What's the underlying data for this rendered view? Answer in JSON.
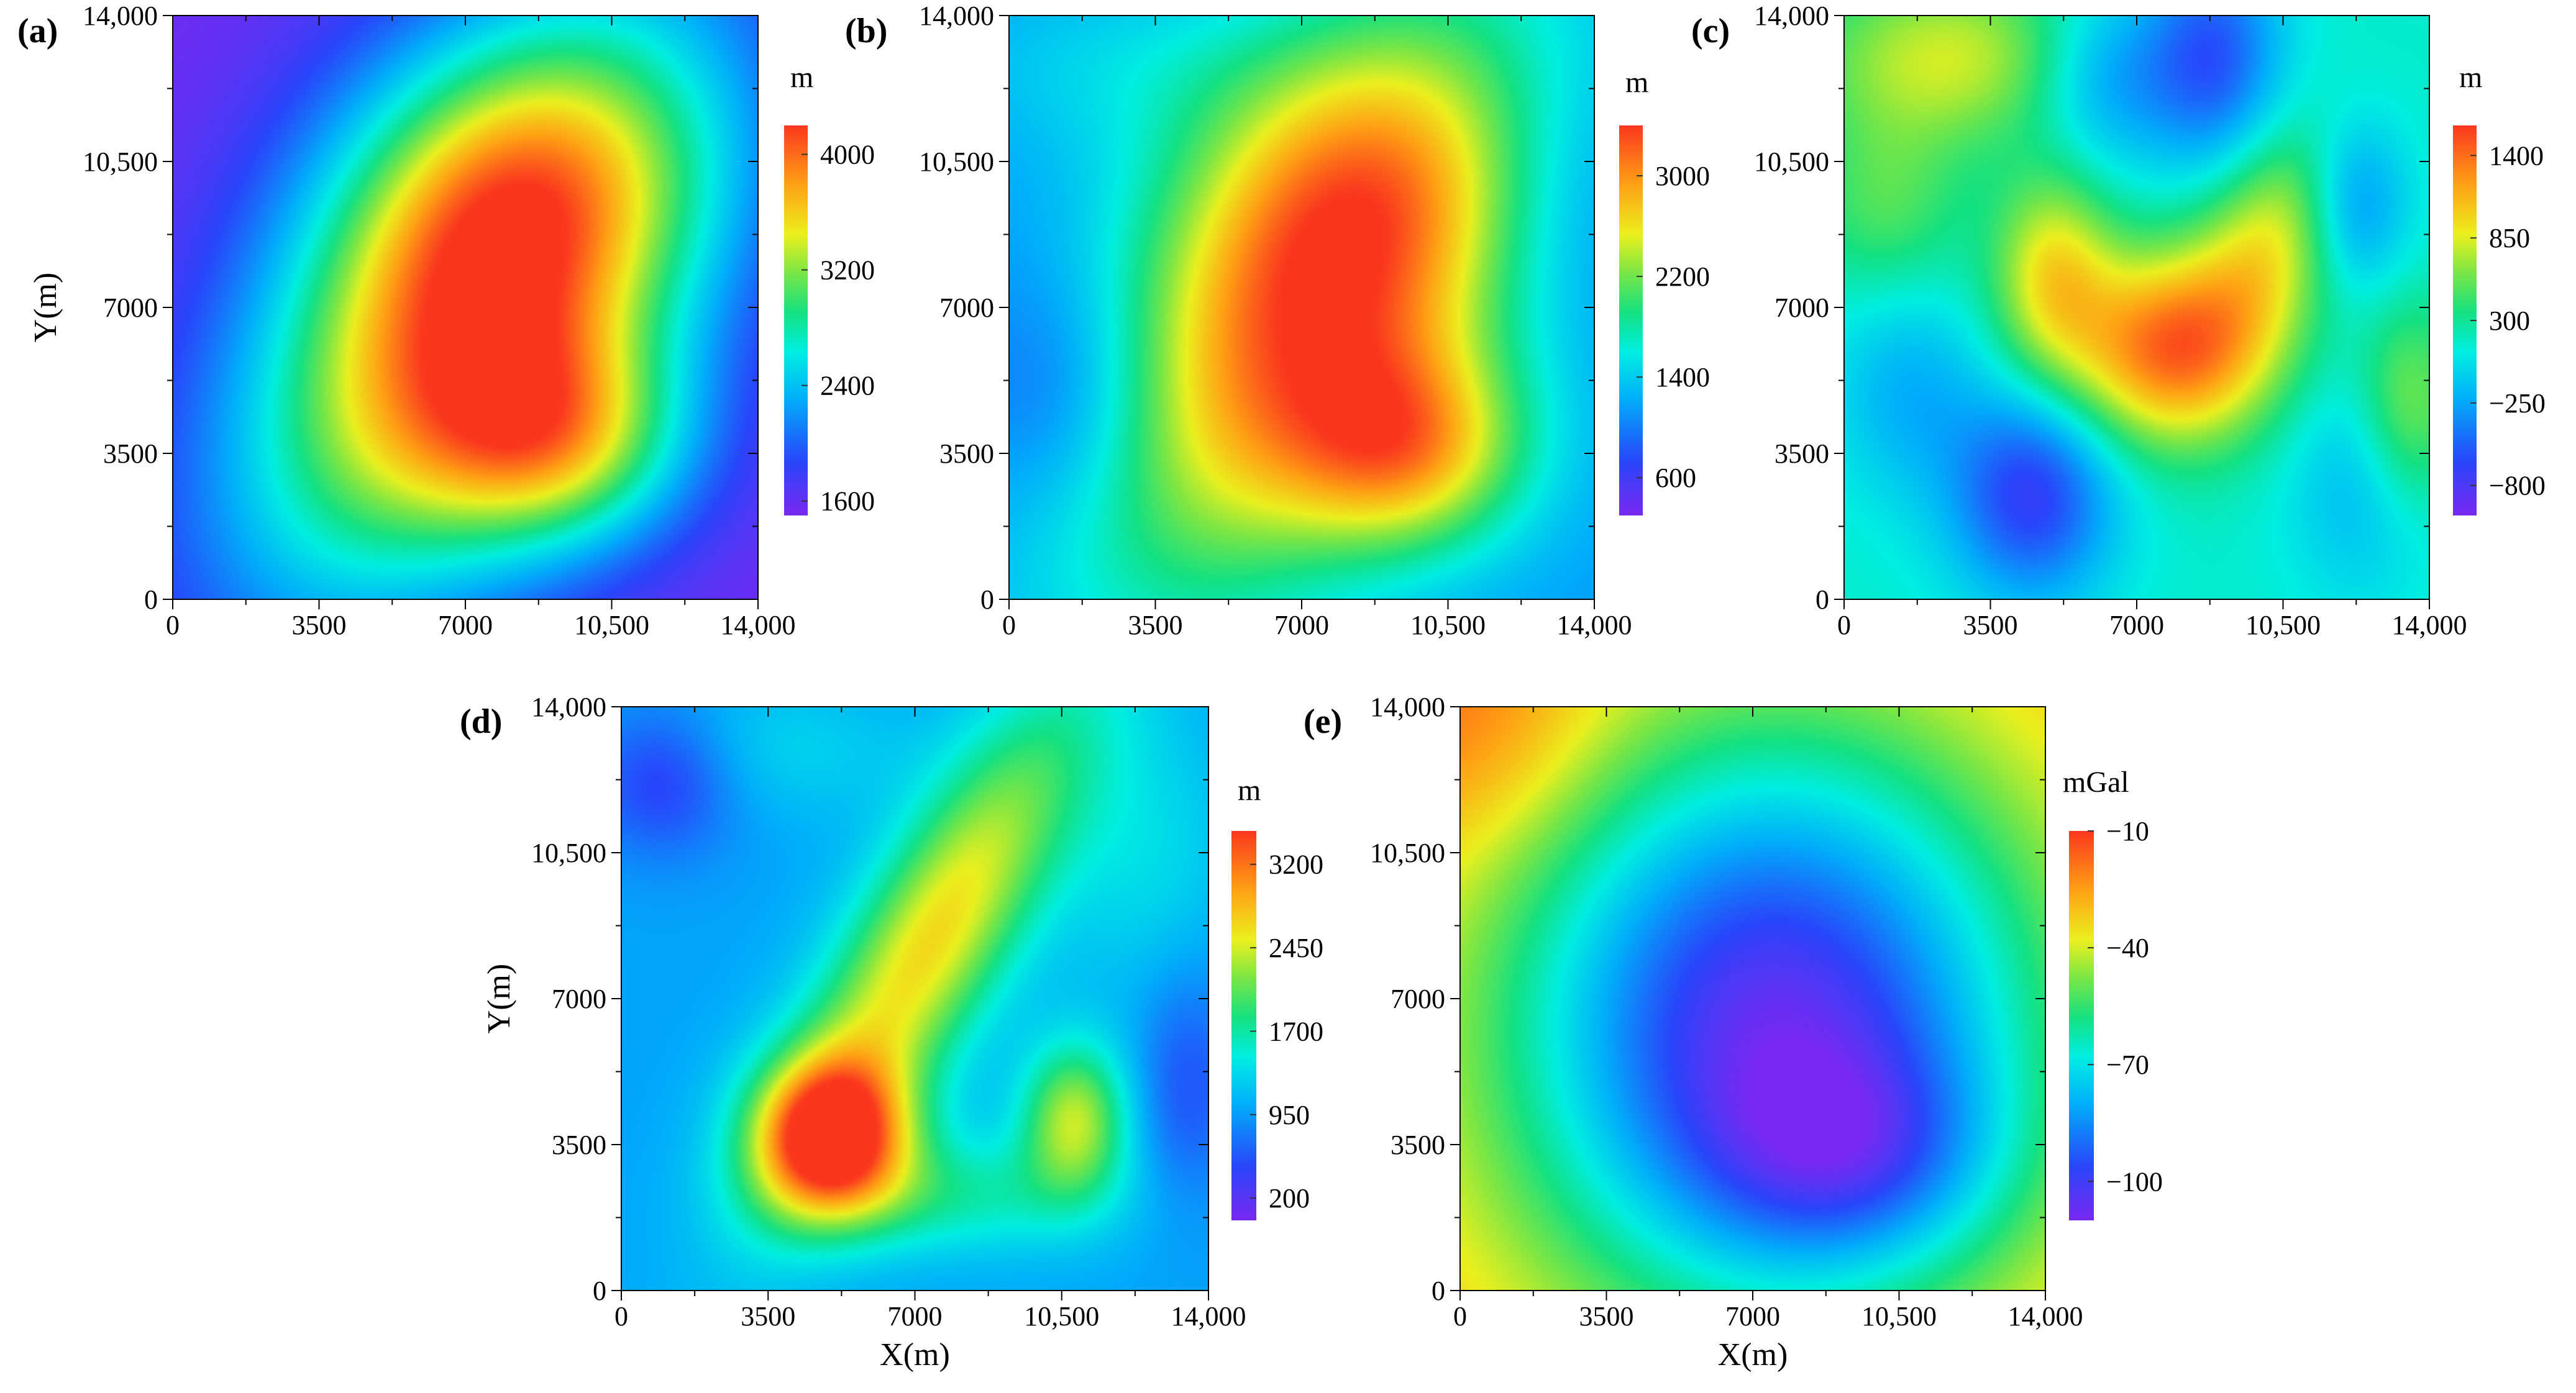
{
  "chart_data": [
    {
      "panel": "(a)",
      "type": "heatmap",
      "xlabel": "",
      "ylabel": "Y(m)",
      "xlim": [
        0,
        14000
      ],
      "ylim": [
        0,
        14000
      ],
      "xticks": [
        0,
        3500,
        7000,
        10500,
        14000
      ],
      "xtick_labels": [
        "0",
        "3500",
        "7000",
        "10,500",
        "14,000"
      ],
      "yticks": [
        0,
        3500,
        7000,
        10500,
        14000
      ],
      "ytick_labels": [
        "0",
        "3500",
        "7000",
        "10,500",
        "14,000"
      ],
      "colorbar": {
        "unit": "m",
        "range": [
          1500,
          4200
        ],
        "ticks": [
          1600,
          2400,
          3200,
          4000
        ],
        "tick_labels": [
          "1600",
          "2400",
          "3200",
          "4000"
        ]
      },
      "background": 1550,
      "features": [
        {
          "x": 7300,
          "y": 7100,
          "sx": 3000,
          "sy": 5400,
          "rot": -33,
          "amp": 2450
        },
        {
          "x": 9300,
          "y": 3800,
          "sx": 2200,
          "sy": 1800,
          "rot": 0,
          "amp": 1250
        },
        {
          "x": 8200,
          "y": 9800,
          "sx": 3200,
          "sy": 2600,
          "rot": 0,
          "amp": 600
        }
      ]
    },
    {
      "panel": "(b)",
      "type": "heatmap",
      "xlabel": "",
      "ylabel": "",
      "xlim": [
        0,
        14000
      ],
      "ylim": [
        0,
        14000
      ],
      "xticks": [
        0,
        3500,
        7000,
        10500,
        14000
      ],
      "xtick_labels": [
        "0",
        "3500",
        "7000",
        "10,500",
        "14,000"
      ],
      "yticks": [
        0,
        3500,
        7000,
        10500,
        14000
      ],
      "ytick_labels": [
        "0",
        "3500",
        "7000",
        "10,500",
        "14,000"
      ],
      "colorbar": {
        "unit": "m",
        "range": [
          300,
          3400
        ],
        "ticks": [
          600,
          1400,
          2200,
          3000
        ],
        "tick_labels": [
          "600",
          "1400",
          "2200",
          "3000"
        ]
      },
      "background": 1150,
      "features": [
        {
          "x": 7300,
          "y": 7100,
          "sx": 2900,
          "sy": 5300,
          "rot": -33,
          "amp": 2050
        },
        {
          "x": 9600,
          "y": 3600,
          "sx": 2000,
          "sy": 1700,
          "rot": 0,
          "amp": 1300
        },
        {
          "x": 8200,
          "y": 9900,
          "sx": 3000,
          "sy": 2500,
          "rot": 0,
          "amp": 500
        },
        {
          "x": 1500,
          "y": 4800,
          "sx": 1800,
          "sy": 2200,
          "rot": 0,
          "amp": -500
        },
        {
          "x": 13000,
          "y": 9800,
          "sx": 1800,
          "sy": 2500,
          "rot": 0,
          "amp": -350
        },
        {
          "x": 2500,
          "y": 12800,
          "sx": 3000,
          "sy": 1500,
          "rot": 0,
          "amp": 250
        }
      ]
    },
    {
      "panel": "(c)",
      "type": "heatmap",
      "xlabel": "",
      "ylabel": "",
      "xlim": [
        0,
        14000
      ],
      "ylim": [
        0,
        14000
      ],
      "xticks": [
        0,
        3500,
        7000,
        10500,
        14000
      ],
      "xtick_labels": [
        "0",
        "3500",
        "7000",
        "10,500",
        "14,000"
      ],
      "yticks": [
        0,
        3500,
        7000,
        10500,
        14000
      ],
      "ytick_labels": [
        "0",
        "3500",
        "7000",
        "10,500",
        "14,000"
      ],
      "colorbar": {
        "unit": "m",
        "range": [
          -1000,
          1600
        ],
        "ticks": [
          -800,
          -250,
          300,
          850,
          1400
        ],
        "tick_labels": [
          "−800",
          "−250",
          "300",
          "850",
          "1400"
        ]
      },
      "background": 150,
      "features": [
        {
          "x": 7800,
          "y": 6000,
          "sx": 1700,
          "sy": 1600,
          "rot": 0,
          "amp": 1250
        },
        {
          "x": 10200,
          "y": 8600,
          "sx": 1200,
          "sy": 2000,
          "rot": -20,
          "amp": 700
        },
        {
          "x": 5000,
          "y": 7800,
          "sx": 1000,
          "sy": 1700,
          "rot": 0,
          "amp": 750
        },
        {
          "x": 4500,
          "y": 2500,
          "sx": 1400,
          "sy": 1800,
          "rot": 0,
          "amp": -850
        },
        {
          "x": 8800,
          "y": 13000,
          "sx": 1200,
          "sy": 1900,
          "rot": 0,
          "amp": -750
        },
        {
          "x": 6200,
          "y": 12500,
          "sx": 1200,
          "sy": 1500,
          "rot": 0,
          "amp": -450
        },
        {
          "x": 12200,
          "y": 9500,
          "sx": 900,
          "sy": 1500,
          "rot": 0,
          "amp": -550
        },
        {
          "x": 12500,
          "y": 2800,
          "sx": 1300,
          "sy": 2000,
          "rot": 0,
          "amp": -350
        },
        {
          "x": 1500,
          "y": 5000,
          "sx": 1300,
          "sy": 1800,
          "rot": 0,
          "amp": -350
        },
        {
          "x": 2500,
          "y": 13000,
          "sx": 2300,
          "sy": 1500,
          "rot": 0,
          "amp": 650
        },
        {
          "x": 13500,
          "y": 4500,
          "sx": 900,
          "sy": 1800,
          "rot": 0,
          "amp": 550
        },
        {
          "x": 1000,
          "y": 9500,
          "sx": 1300,
          "sy": 1600,
          "rot": 0,
          "amp": 350
        }
      ]
    },
    {
      "panel": "(d)",
      "type": "heatmap",
      "xlabel": "X(m)",
      "ylabel": "Y(m)",
      "xlim": [
        0,
        14000
      ],
      "ylim": [
        0,
        14000
      ],
      "xticks": [
        0,
        3500,
        7000,
        10500,
        14000
      ],
      "xtick_labels": [
        "0",
        "3500",
        "7000",
        "10,500",
        "14,000"
      ],
      "yticks": [
        0,
        3500,
        7000,
        10500,
        14000
      ],
      "ytick_labels": [
        "0",
        "3500",
        "7000",
        "10,500",
        "14,000"
      ],
      "colorbar": {
        "unit": "m",
        "range": [
          0,
          3500
        ],
        "ticks": [
          200,
          950,
          1700,
          2450,
          3200
        ],
        "tick_labels": [
          "200",
          "950",
          "1700",
          "2450",
          "3200"
        ]
      },
      "background": 1000,
      "features": [
        {
          "x": 5000,
          "y": 3700,
          "sx": 1300,
          "sy": 1300,
          "rot": 0,
          "amp": 2450
        },
        {
          "x": 7400,
          "y": 8400,
          "sx": 1300,
          "sy": 4500,
          "rot": -30,
          "amp": 1650
        },
        {
          "x": 10800,
          "y": 4100,
          "sx": 900,
          "sy": 1300,
          "rot": 0,
          "amp": 1350
        },
        {
          "x": 7800,
          "y": 2300,
          "sx": 2600,
          "sy": 1000,
          "rot": 0,
          "amp": 650
        },
        {
          "x": 1000,
          "y": 12300,
          "sx": 1300,
          "sy": 1300,
          "rot": 0,
          "amp": -650
        },
        {
          "x": 13500,
          "y": 5000,
          "sx": 900,
          "sy": 2000,
          "rot": 0,
          "amp": -450
        },
        {
          "x": 3500,
          "y": 13000,
          "sx": 2500,
          "sy": 1200,
          "rot": 0,
          "amp": 300
        },
        {
          "x": 12500,
          "y": 10500,
          "sx": 1500,
          "sy": 2500,
          "rot": 0,
          "amp": 350
        }
      ]
    },
    {
      "panel": "(e)",
      "type": "heatmap",
      "xlabel": "X(m)",
      "ylabel": "",
      "xlim": [
        0,
        14000
      ],
      "ylim": [
        0,
        14000
      ],
      "xticks": [
        0,
        3500,
        7000,
        10500,
        14000
      ],
      "xtick_labels": [
        "0",
        "3500",
        "7000",
        "10,500",
        "14,000"
      ],
      "yticks": [
        0,
        3500,
        7000,
        10500,
        14000
      ],
      "ytick_labels": [
        "0",
        "3500",
        "7000",
        "10,500",
        "14,000"
      ],
      "colorbar": {
        "unit": "mGal",
        "range": [
          -110,
          -10
        ],
        "ticks": [
          -10,
          -40,
          -70,
          -100
        ],
        "tick_labels": [
          "−10",
          "−40",
          "−70",
          "−100"
        ]
      },
      "background": -25,
      "features": [
        {
          "x": 7500,
          "y": 6300,
          "sx": 4700,
          "sy": 5200,
          "rot": 0,
          "amp": -80
        },
        {
          "x": 9500,
          "y": 3200,
          "sx": 2500,
          "sy": 1800,
          "rot": 0,
          "amp": -22
        },
        {
          "x": 400,
          "y": 13600,
          "sx": 2200,
          "sy": 2200,
          "rot": 0,
          "amp": 12
        }
      ]
    }
  ]
}
